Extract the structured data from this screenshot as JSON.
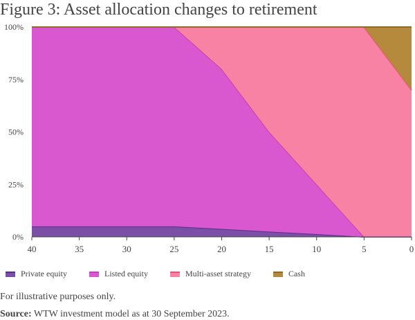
{
  "title": "Figure 3: Asset allocation changes to retirement",
  "note": "For illustrative purposes only.",
  "source_label": "Source:",
  "source_text": " WTW investment model as at 30 September 2023.",
  "chart_data": {
    "type": "area",
    "stacked": true,
    "x": [
      40,
      25,
      20,
      15,
      10,
      5,
      0
    ],
    "xlim": [
      40,
      0
    ],
    "xticks": [
      "40",
      "35",
      "30",
      "25",
      "20",
      "15",
      "10",
      "5",
      "0"
    ],
    "ylim": [
      0,
      100
    ],
    "yticks": [
      "0%",
      "25%",
      "50%",
      "75%",
      "100%"
    ],
    "legend_position": "bottom-left",
    "series": [
      {
        "name": "Private equity",
        "color": "#7b4fa6",
        "line_color": "#5a2d8a",
        "values": [
          5,
          5,
          3.8,
          2.5,
          1.3,
          0,
          0
        ]
      },
      {
        "name": "Listed equity",
        "color": "#d957cf",
        "line_color": "#c93bbf",
        "values": [
          95,
          95,
          76.2,
          47.5,
          23.7,
          0,
          0
        ]
      },
      {
        "name": "Multi-asset strategy",
        "color": "#f882a3",
        "line_color": "#e8507c",
        "values": [
          0,
          0,
          20,
          50,
          75,
          100,
          70
        ]
      },
      {
        "name": "Cash",
        "color": "#b68a3c",
        "line_color": "#8f6a25",
        "values": [
          0,
          0,
          0,
          0,
          0,
          0,
          30
        ]
      }
    ]
  }
}
